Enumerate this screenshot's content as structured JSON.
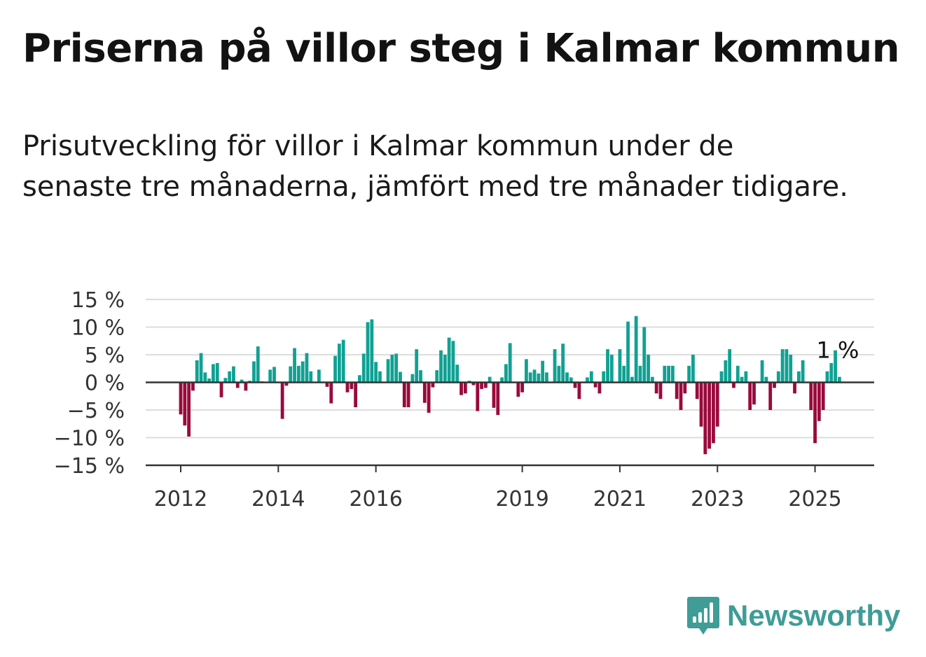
{
  "title": "Priserna på villor steg i Kalmar kommun",
  "subtitle": "Prisutveckling för villor i Kalmar kommun under de senaste tre månaderna, jämfört med tre månader tidigare.",
  "brand": {
    "name": "Newsworthy",
    "color": "#3f9c96"
  },
  "colors": {
    "positive": "#10a193",
    "negative": "#9a0a3c",
    "grid": "#dddddd",
    "axis": "#333333"
  },
  "chart_data": {
    "type": "bar",
    "ylim": [
      -15,
      15
    ],
    "yticks": [
      15,
      10,
      5,
      0,
      -5,
      -10,
      -15
    ],
    "ytick_labels": [
      "15 %",
      "10 %",
      "5 %",
      "0 %",
      "−5 %",
      "−10 %",
      "−15 %"
    ],
    "xticks": [
      {
        "label": "2012",
        "index": 0
      },
      {
        "label": "2014",
        "index": 24
      },
      {
        "label": "2016",
        "index": 48
      },
      {
        "label": "2019",
        "index": 84
      },
      {
        "label": "2021",
        "index": 108
      },
      {
        "label": "2023",
        "index": 132
      },
      {
        "label": "2025",
        "index": 156
      }
    ],
    "end_label": "1 %",
    "values": [
      -5.8,
      -7.8,
      -9.8,
      -1.5,
      4,
      5.3,
      1.8,
      0.7,
      3.3,
      3.5,
      -2.7,
      0.8,
      2,
      2.9,
      -1,
      0.5,
      -1.5,
      0.3,
      3.8,
      6.5,
      0.2,
      0,
      2.3,
      2.8,
      0,
      -6.6,
      -0.6,
      2.9,
      6.2,
      3,
      3.8,
      5.3,
      2,
      0.1,
      2.3,
      0,
      -0.8,
      -3.8,
      4.8,
      7,
      7.7,
      -1.8,
      -1.2,
      -4.5,
      1.3,
      5.2,
      10.9,
      11.4,
      3.7,
      2,
      0,
      4.2,
      5,
      5.2,
      1.9,
      -4.5,
      -4.5,
      1.5,
      6,
      2.2,
      -3.7,
      -5.5,
      -0.9,
      2.2,
      5.8,
      5,
      8.1,
      7.5,
      3.2,
      -2.3,
      -2,
      0.3,
      -0.5,
      -5.2,
      -1.2,
      -1,
      1,
      -4.6,
      -5.9,
      0.9,
      3.3,
      7.1,
      0,
      -2.6,
      -1.8,
      4.2,
      1.8,
      2.3,
      1.6,
      3.9,
      1.8,
      0,
      6,
      3,
      7,
      1.8,
      0.9,
      -1,
      -3,
      0,
      0.9,
      2,
      -0.9,
      -2,
      2,
      6,
      5,
      0,
      6,
      3,
      11,
      1,
      12,
      3,
      10,
      5,
      1,
      -2,
      -3,
      3,
      3,
      3,
      -3,
      -5,
      -2,
      3,
      5,
      -3,
      -8,
      -13,
      -12,
      -11,
      -8,
      2,
      4,
      6,
      -1,
      3,
      1,
      2,
      -5,
      -4,
      0,
      4,
      1,
      -5,
      -1,
      2,
      6,
      6,
      5,
      -2,
      2,
      4,
      0,
      -5,
      -11,
      -7,
      -5,
      2,
      3.5,
      5.8,
      1
    ]
  }
}
